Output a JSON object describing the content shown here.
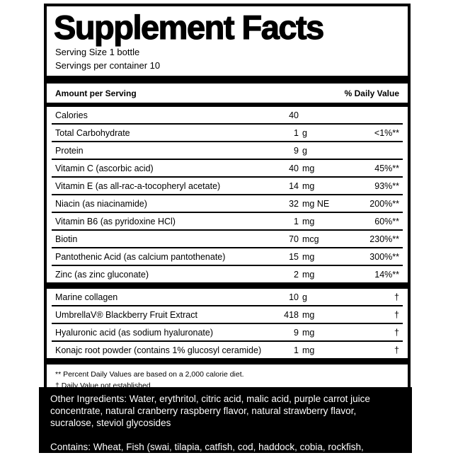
{
  "panel": {
    "title": "Supplement Facts",
    "serving_size": "Serving Size 1 bottle",
    "servings_per_container": "Servings per container 10",
    "columns": {
      "amount_per_serving": "Amount per Serving",
      "percent_daily_value": "% Daily Value"
    },
    "main_rows": [
      {
        "name": "Calories",
        "value": "40",
        "unit": "",
        "dv": ""
      },
      {
        "name": "Total Carbohydrate",
        "value": "1",
        "unit": "g",
        "dv": "<1%**"
      },
      {
        "name": "Protein",
        "value": "9",
        "unit": "g",
        "dv": ""
      },
      {
        "name": "Vitamin C (ascorbic acid)",
        "value": "40",
        "unit": "mg",
        "dv": "45%**"
      },
      {
        "name": "Vitamin E (as all-rac-a-tocopheryl acetate)",
        "value": "14",
        "unit": "mg",
        "dv": "93%**"
      },
      {
        "name": "Niacin (as niacinamide)",
        "value": "32",
        "unit": "mg NE",
        "dv": "200%**"
      },
      {
        "name": "Vitamin B6 (as pyridoxine HCl)",
        "value": "1",
        "unit": "mg",
        "dv": "60%**"
      },
      {
        "name": "Biotin",
        "value": "70",
        "unit": "mcg",
        "dv": "230%**"
      },
      {
        "name": "Pantothenic Acid (as calcium pantothenate)",
        "value": "15",
        "unit": "mg",
        "dv": "300%**"
      },
      {
        "name": "Zinc (as zinc gluconate)",
        "value": "2",
        "unit": "mg",
        "dv": "14%**"
      }
    ],
    "blend_rows": [
      {
        "name": "Marine collagen",
        "value": "10",
        "unit": "g",
        "dv": "†"
      },
      {
        "name": "UmbrellaV® Blackberry Fruit Extract",
        "value": "418",
        "unit": "mg",
        "dv": "†"
      },
      {
        "name": "Hyaluronic acid (as sodium hyaluronate)",
        "value": "9",
        "unit": "mg",
        "dv": "†"
      },
      {
        "name": "Konajc root powder (contains 1% glucosyl ceramide)",
        "value": "1",
        "unit": "mg",
        "dv": "†"
      }
    ],
    "footnotes": {
      "daily_values": "** Percent Daily Values are based on a 2,000 calorie diet.",
      "not_established": "† Daily Value not established."
    }
  },
  "footer": {
    "other_ingredients": "Other Ingredients: Water, erythritol, citric acid, malic acid, purple carrot juice concentrate, natural cranberry raspberry flavor, natural strawberry flavor, sucralose, steviol glycosides",
    "contains": "Contains: Wheat, Fish (swai, tilapia, catfish, cod, haddock, cobia, rockfish, barramundi)"
  },
  "colors": {
    "ink": "#000000",
    "paper": "#ffffff",
    "footer_bg": "#000000",
    "footer_text": "#ffffff"
  }
}
